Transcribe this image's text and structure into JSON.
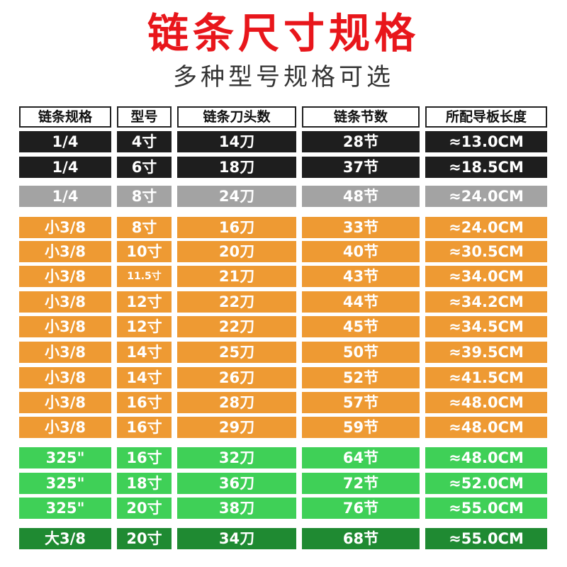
{
  "title": "链条尺寸规格",
  "subtitle": "多种型号规格可选",
  "colors": {
    "title_red": "#e8161b",
    "black": "#1e1e1e",
    "gray": "#a3a3a3",
    "orange": "#ee9a33",
    "green": "#3fd057",
    "dark_green": "#1f8a32"
  },
  "headers": [
    "链条规格",
    "型号",
    "链条刀头数",
    "链条节数",
    "所配导板长度"
  ],
  "rows": [
    {
      "spec": "1/4",
      "model": "4寸",
      "teeth": "14刀",
      "links": "28节",
      "bar": "≈13.0CM",
      "color": "black"
    },
    {
      "spec": "1/4",
      "model": "6寸",
      "teeth": "18刀",
      "links": "37节",
      "bar": "≈18.5CM",
      "color": "black"
    },
    {
      "spec": "1/4",
      "model": "8寸",
      "teeth": "24刀",
      "links": "48节",
      "bar": "≈24.0CM",
      "color": "gray"
    },
    {
      "spec": "小3/8",
      "model": "8寸",
      "teeth": "16刀",
      "links": "33节",
      "bar": "≈24.0CM",
      "color": "orange"
    },
    {
      "spec": "小3/8",
      "model": "10寸",
      "teeth": "20刀",
      "links": "40节",
      "bar": "≈30.5CM",
      "color": "orange"
    },
    {
      "spec": "小3/8",
      "model": "11.5寸",
      "teeth": "21刀",
      "links": "43节",
      "bar": "≈34.0CM",
      "color": "orange",
      "small_model": true
    },
    {
      "spec": "小3/8",
      "model": "12寸",
      "teeth": "22刀",
      "links": "44节",
      "bar": "≈34.2CM",
      "color": "orange"
    },
    {
      "spec": "小3/8",
      "model": "12寸",
      "teeth": "22刀",
      "links": "45节",
      "bar": "≈34.5CM",
      "color": "orange"
    },
    {
      "spec": "小3/8",
      "model": "14寸",
      "teeth": "25刀",
      "links": "50节",
      "bar": "≈39.5CM",
      "color": "orange"
    },
    {
      "spec": "小3/8",
      "model": "14寸",
      "teeth": "26刀",
      "links": "52节",
      "bar": "≈41.5CM",
      "color": "orange"
    },
    {
      "spec": "小3/8",
      "model": "16寸",
      "teeth": "28刀",
      "links": "57节",
      "bar": "≈48.0CM",
      "color": "orange"
    },
    {
      "spec": "小3/8",
      "model": "16寸",
      "teeth": "29刀",
      "links": "59节",
      "bar": "≈48.0CM",
      "color": "orange"
    },
    {
      "spec": "325\"",
      "model": "16寸",
      "teeth": "32刀",
      "links": "64节",
      "bar": "≈48.0CM",
      "color": "green"
    },
    {
      "spec": "325\"",
      "model": "18寸",
      "teeth": "36刀",
      "links": "72节",
      "bar": "≈52.0CM",
      "color": "green"
    },
    {
      "spec": "325\"",
      "model": "20寸",
      "teeth": "38刀",
      "links": "76节",
      "bar": "≈55.0CM",
      "color": "green"
    },
    {
      "spec": "大3/8",
      "model": "20寸",
      "teeth": "34刀",
      "links": "68节",
      "bar": "≈55.0CM",
      "color": "dark_green"
    }
  ]
}
